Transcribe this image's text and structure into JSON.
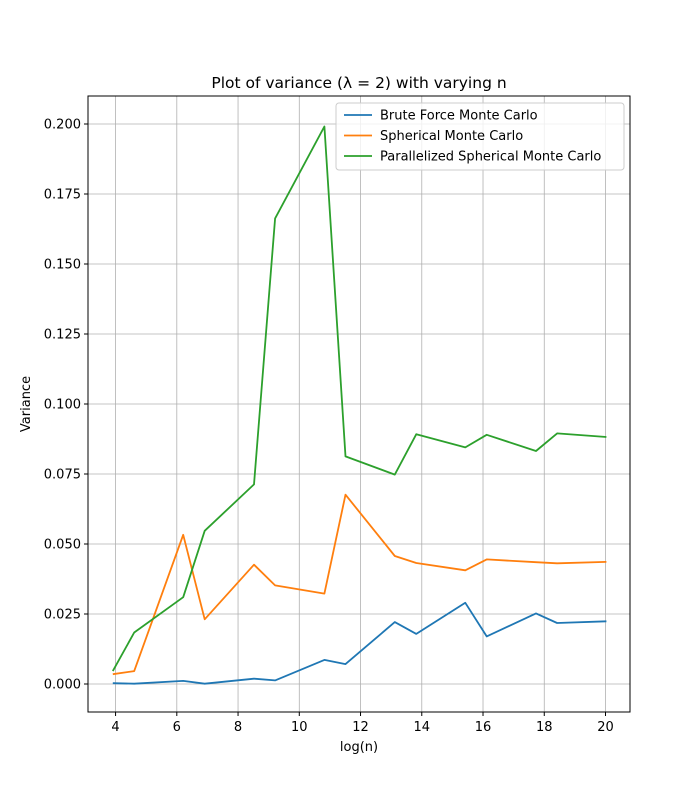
{
  "chart_data": {
    "type": "line",
    "title": "Plot of variance (λ = 2) with varying n",
    "xlabel": "log(n)",
    "ylabel": "Variance",
    "xlim": [
      3.1,
      20.8
    ],
    "ylim": [
      -0.01,
      0.21
    ],
    "xticks": [
      4,
      6,
      8,
      10,
      12,
      14,
      16,
      18,
      20
    ],
    "xtick_labels": [
      "4",
      "6",
      "8",
      "10",
      "12",
      "14",
      "16",
      "18",
      "20"
    ],
    "yticks": [
      0.0,
      0.025,
      0.05,
      0.075,
      0.1,
      0.125,
      0.15,
      0.175,
      0.2
    ],
    "ytick_labels": [
      "0.000",
      "0.025",
      "0.050",
      "0.075",
      "0.100",
      "0.125",
      "0.150",
      "0.175",
      "0.200"
    ],
    "grid": true,
    "legend_position": "upper-right",
    "x": [
      3.91,
      4.61,
      6.21,
      6.91,
      8.52,
      9.21,
      10.82,
      11.51,
      13.12,
      13.82,
      15.42,
      16.12,
      17.73,
      18.42,
      20.03
    ],
    "series": [
      {
        "name": "Brute Force Monte Carlo",
        "color": "#1f77b4",
        "values": [
          0.0003,
          0.0001,
          0.0011,
          0.0001,
          0.0019,
          0.0013,
          0.0086,
          0.0071,
          0.0221,
          0.0179,
          0.029,
          0.017,
          0.0252,
          0.0218,
          0.0224
        ]
      },
      {
        "name": "Spherical Monte Carlo",
        "color": "#ff7f0e",
        "values": [
          0.0035,
          0.0046,
          0.0533,
          0.0231,
          0.0426,
          0.0352,
          0.0323,
          0.0676,
          0.0457,
          0.0432,
          0.0406,
          0.0445,
          0.0435,
          0.0431,
          0.0436
        ]
      },
      {
        "name": "Parallelized Spherical Monte Carlo",
        "color": "#2ca02c",
        "values": [
          0.0046,
          0.0184,
          0.031,
          0.0547,
          0.0713,
          0.1663,
          0.1991,
          0.0813,
          0.0748,
          0.0892,
          0.0845,
          0.089,
          0.0832,
          0.0895,
          0.0882
        ]
      }
    ]
  }
}
